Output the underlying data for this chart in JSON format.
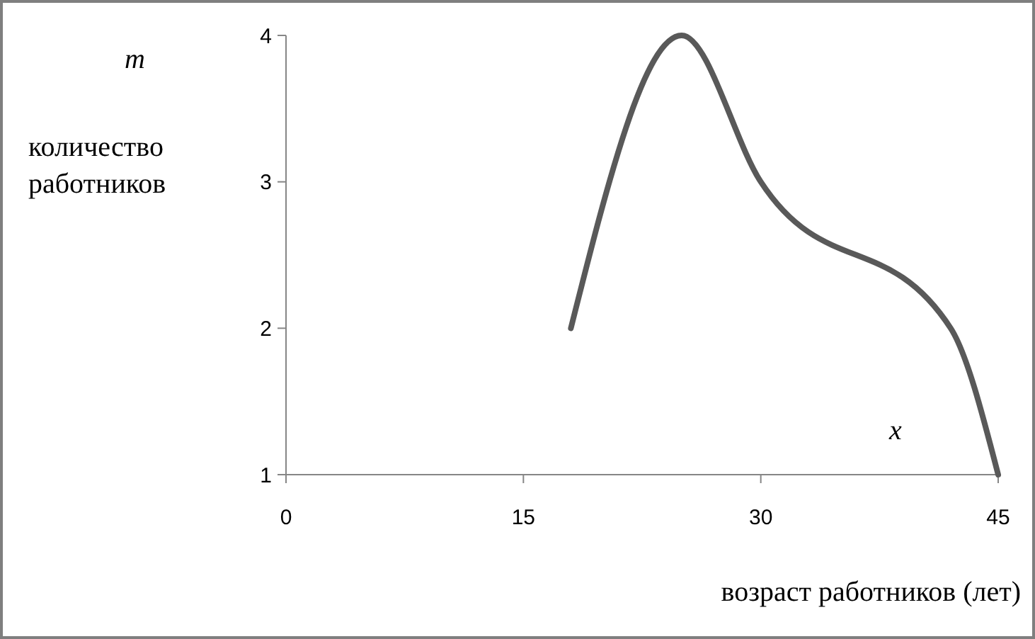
{
  "chart_data": {
    "type": "line",
    "xlabel": "возраст работников (лет)",
    "ylabel": "количество работников",
    "annotations": [
      "m",
      "x"
    ],
    "x": [
      18,
      25,
      30,
      42,
      45
    ],
    "series": [
      {
        "color": "#595959",
        "values": [
          2,
          4,
          3,
          2,
          1
        ]
      }
    ],
    "xlim": [
      0,
      45
    ],
    "xticks": [
      0,
      15,
      30,
      45
    ],
    "ylim": [
      1,
      4
    ],
    "yticks": [
      1,
      2,
      3,
      4
    ],
    "grid": false,
    "marker": "none",
    "line_style": "solid"
  }
}
